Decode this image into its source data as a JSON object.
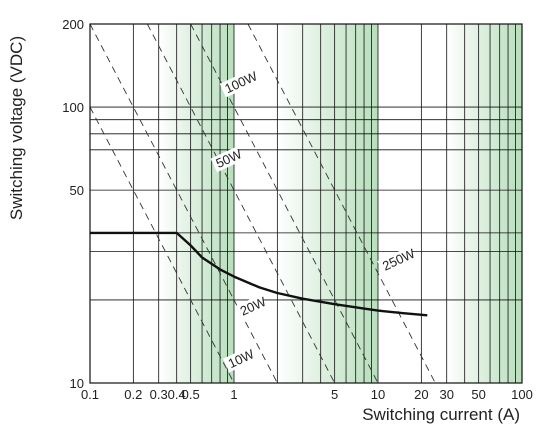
{
  "chart_data": {
    "type": "line",
    "title": "",
    "xlabel": "Switching current (A)",
    "ylabel": "Switching voltage (VDC)",
    "x_scale": "log",
    "y_scale": "log",
    "xlim": [
      0.1,
      100
    ],
    "ylim": [
      10,
      200
    ],
    "grid": true,
    "x_tick_labels": [
      {
        "value": 0.1,
        "label": "0.1"
      },
      {
        "value": 0.2,
        "label": "0.2"
      },
      {
        "value": 0.3,
        "label": "0.3"
      },
      {
        "value": 0.4,
        "label": "0.4"
      },
      {
        "value": 0.5,
        "label": "0.5"
      },
      {
        "value": 1,
        "label": "1"
      },
      {
        "value": 5,
        "label": "5"
      },
      {
        "value": 10,
        "label": "10"
      },
      {
        "value": 20,
        "label": "20"
      },
      {
        "value": 30,
        "label": "30"
      },
      {
        "value": 50,
        "label": "50"
      },
      {
        "value": 100,
        "label": "100"
      }
    ],
    "y_tick_labels": [
      {
        "value": 10,
        "label": "10"
      },
      {
        "value": 50,
        "label": "50"
      },
      {
        "value": 100,
        "label": "100"
      },
      {
        "value": 200,
        "label": "200"
      }
    ],
    "x_gridlines": [
      0.1,
      0.2,
      0.3,
      0.4,
      0.5,
      0.6,
      0.7,
      0.8,
      0.9,
      1,
      2,
      3,
      4,
      5,
      6,
      7,
      8,
      9,
      10,
      20,
      30,
      40,
      50,
      60,
      70,
      80,
      90,
      100
    ],
    "y_gridlines": [
      10,
      20,
      30,
      35,
      50,
      70,
      80,
      90,
      100,
      200
    ],
    "series": [
      {
        "x": [
          0.1,
          0.4,
          0.5,
          0.6,
          0.8,
          1,
          1.5,
          2,
          3,
          5,
          8,
          10,
          15,
          22
        ],
        "y": [
          35,
          35,
          31.5,
          28.5,
          25.8,
          24.3,
          22.2,
          21.2,
          20.2,
          19.3,
          18.6,
          18.3,
          17.9,
          17.6
        ],
        "color": "#111111"
      }
    ],
    "power_lines": [
      {
        "label": "10W",
        "watts": 10,
        "label_x": 0.95,
        "label_y": 11.3
      },
      {
        "label": "20W",
        "watts": 20,
        "label_x": 1.15,
        "label_y": 17.5
      },
      {
        "label": "50W",
        "watts": 50,
        "label_x": 0.78,
        "label_y": 60
      },
      {
        "label": "100W",
        "watts": 100,
        "label_x": 0.9,
        "label_y": 112
      },
      {
        "label": "250W",
        "watts": 250,
        "label_x": 11.2,
        "label_y": 25.5
      }
    ],
    "shaded_bands": [
      {
        "from": 0.3,
        "to": 1,
        "fade": "left"
      },
      {
        "from": 2,
        "to": 10,
        "fade": "left"
      },
      {
        "from": 30,
        "to": 100,
        "fade": "left"
      }
    ],
    "colors": {
      "grid": "#111111",
      "band": "#9fd4a5",
      "curve": "#111111",
      "power_line": "#333333"
    }
  }
}
